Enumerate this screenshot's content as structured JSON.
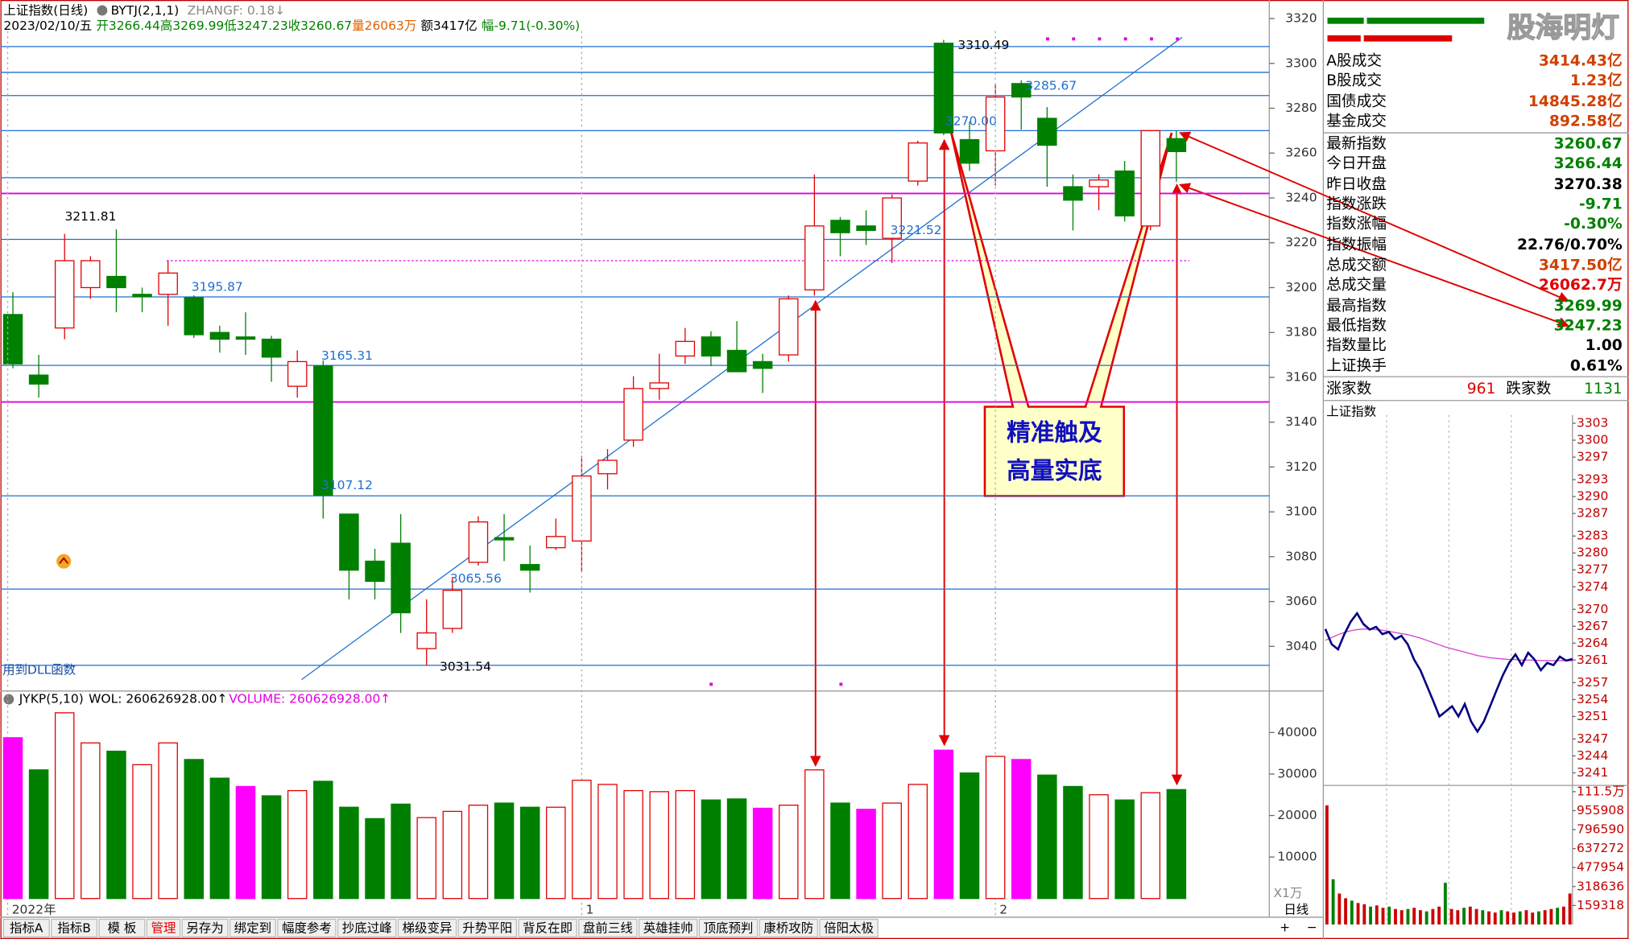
{
  "header": {
    "title": "上证指数(日线)",
    "indicator": "BYTJ(2,1,1)",
    "zhangf": "ZHANGF: 0.18↓",
    "date": "2023/02/10/五",
    "open": "开3266.44",
    "high": "高3269.99",
    "low": "低3247.23",
    "close": "收3260.67",
    "volume": "量26063万",
    "amount": "额3417亿",
    "change": "幅-9.71(-0.30%)"
  },
  "main_note": "用到DLL函数",
  "callout": [
    "精准触及",
    "高量实底"
  ],
  "chart_data": [
    {
      "type": "candlestick",
      "open": [
        3188,
        3161,
        3182,
        3200,
        3205,
        3197,
        3197,
        3195.5,
        3180,
        3178,
        3177,
        3156,
        3165,
        3099,
        3078,
        3086,
        3039,
        3048,
        3077.5,
        3088.5,
        3076.5,
        3084,
        3087,
        3117,
        3132,
        3155,
        3169.5,
        3178,
        3172,
        3167,
        3170,
        3199,
        3230,
        3227.5,
        3222,
        3247.5,
        3309,
        3266,
        3261,
        3291,
        3275.5,
        3245,
        3245,
        3252,
        3227.5,
        3266.44
      ],
      "high": [
        3198,
        3170,
        3224,
        3214,
        3226,
        3200,
        3212,
        3196.5,
        3183,
        3189,
        3178.5,
        3172,
        3167.5,
        3099,
        3083.5,
        3099,
        3061,
        3071,
        3098,
        3099,
        3085,
        3097,
        3125,
        3128,
        3160.5,
        3170.5,
        3182,
        3180.5,
        3185,
        3170.5,
        3196.5,
        3250.5,
        3231.5,
        3234.5,
        3241.5,
        3265.5,
        3310.49,
        3274,
        3290.5,
        3292.5,
        3280.5,
        3250.5,
        3250.5,
        3256.5,
        3270,
        3269.99
      ],
      "low": [
        3164,
        3151,
        3177,
        3195,
        3189,
        3189,
        3183,
        3177.5,
        3171,
        3170,
        3158,
        3151,
        3097,
        3061,
        3061,
        3046,
        3031.54,
        3046,
        3076,
        3078,
        3064,
        3083,
        3073,
        3110,
        3129,
        3150,
        3166,
        3165,
        3163,
        3153,
        3167,
        3196.5,
        3214,
        3219,
        3211,
        3245.5,
        3268,
        3252,
        3245.5,
        3270.5,
        3245,
        3225.5,
        3234.5,
        3229.5,
        3225.5,
        3247.23
      ],
      "close": [
        3166,
        3157,
        3212,
        3212,
        3200,
        3196,
        3206.5,
        3179,
        3177,
        3177,
        3169,
        3167,
        3107.5,
        3074,
        3069,
        3055,
        3046,
        3065,
        3095.5,
        3087.5,
        3074,
        3089,
        3116,
        3123,
        3155,
        3157.5,
        3176,
        3169.5,
        3162.5,
        3164,
        3195,
        3227.5,
        3224.5,
        3225.5,
        3240,
        3264.5,
        3269,
        3255.5,
        3285,
        3285,
        3263.5,
        3239,
        3248,
        3232,
        3270,
        3260.67
      ],
      "up_color": "#e00000",
      "down_color": "#008000",
      "ylim": [
        3025,
        3326
      ],
      "yticks": [
        3040,
        3060,
        3080,
        3100,
        3120,
        3140,
        3160,
        3180,
        3200,
        3220,
        3240,
        3260,
        3280,
        3300,
        3320
      ],
      "levels": [
        3307.5,
        3296,
        3285.67,
        3270,
        3249,
        3221.52,
        3195.87,
        3165.31,
        3107.12,
        3065.56,
        3031.54
      ],
      "level_color": "#1e6fd0",
      "magenta_levels": [
        3242,
        3149
      ],
      "magenta_color": "#e000e0",
      "dotted_levels": [
        3212
      ],
      "annotations": [
        "3211.81",
        "3195.87",
        "3165.31",
        "3107.12",
        "3065.56",
        "3031.54",
        "3221.52",
        "3270.00",
        "3285.67",
        "3310.49"
      ]
    },
    {
      "type": "bar",
      "title": "JYKP(5,10)",
      "legend": [
        "WOL: 260626928.00↑",
        "VOLUME: 260626928.00↑"
      ],
      "categories": [
        "2022年",
        null,
        null,
        null,
        null,
        null,
        null,
        null,
        null,
        null,
        null,
        null,
        null,
        null,
        null,
        null,
        null,
        null,
        null,
        null,
        null,
        null,
        "1",
        null,
        null,
        null,
        null,
        null,
        null,
        null,
        null,
        null,
        null,
        null,
        null,
        null,
        null,
        null,
        "2",
        null,
        null,
        null,
        null,
        null,
        null,
        null
      ],
      "values": [
        38750,
        31000,
        44750,
        37500,
        35500,
        32250,
        37500,
        33500,
        29000,
        27000,
        24750,
        26000,
        28250,
        22000,
        19250,
        22750,
        19500,
        21000,
        22500,
        23000,
        22000,
        22000,
        28500,
        27500,
        26000,
        25750,
        26000,
        23750,
        24000,
        21750,
        22500,
        31000,
        23000,
        21500,
        23000,
        27500,
        35750,
        30250,
        34250,
        33500,
        29750,
        27000,
        25000,
        23750,
        25500,
        26250
      ],
      "colors": [
        "#ff00ff",
        "#008000",
        "#e00000",
        "#e00000",
        "#008000",
        "#e00000",
        "#e00000",
        "#008000",
        "#008000",
        "#ff00ff",
        "#008000",
        "#e00000",
        "#008000",
        "#008000",
        "#008000",
        "#008000",
        "#e00000",
        "#e00000",
        "#e00000",
        "#008000",
        "#008000",
        "#e00000",
        "#e00000",
        "#e00000",
        "#e00000",
        "#e00000",
        "#e00000",
        "#008000",
        "#008000",
        "#ff00ff",
        "#e00000",
        "#e00000",
        "#008000",
        "#ff00ff",
        "#e00000",
        "#e00000",
        "#ff00ff",
        "#008000",
        "#e00000",
        "#ff00ff",
        "#008000",
        "#008000",
        "#e00000",
        "#008000",
        "#e00000",
        "#008000"
      ],
      "hollow_color": "#e00000",
      "ylim": [
        0,
        48000
      ],
      "yticks": [
        10000,
        20000,
        30000,
        40000
      ],
      "unit_label": "X1万",
      "period": "日线"
    },
    {
      "type": "line",
      "title": "上证指数",
      "series": [
        {
          "color": "#000080",
          "values": [
            3266.5,
            3263.8,
            3262.9,
            3265.6,
            3267.8,
            3269.3,
            3267.4,
            3266.4,
            3266.9,
            3265.6,
            3266,
            3264.7,
            3265.3,
            3263.8,
            3261.1,
            3259.2,
            3256.5,
            3253.8,
            3251,
            3251.9,
            3252.8,
            3251,
            3253.2,
            3250.1,
            3248.3,
            3250.1,
            3252.8,
            3255.6,
            3258.3,
            3260.5,
            3262,
            3260.1,
            3262.3,
            3261.1,
            3259.2,
            3260.5,
            3260.1,
            3261.6,
            3260.9,
            3261.2
          ]
        },
        {
          "color": "#d040d0",
          "values": [
            3264.5,
            3265,
            3265.5,
            3265.9,
            3266.2,
            3266.4,
            3266.5,
            3266.5,
            3266.4,
            3266.3,
            3266.1,
            3265.9,
            3265.7,
            3265.5,
            3265.2,
            3264.9,
            3264.5,
            3264.1,
            3263.7,
            3263.3,
            3263,
            3262.7,
            3262.4,
            3262.1,
            3261.8,
            3261.6,
            3261.4,
            3261.3,
            3261.2,
            3261.1,
            3261.1,
            3261,
            3261,
            3261,
            3260.9,
            3260.9,
            3260.9,
            3260.9,
            3260.9,
            3260.9
          ]
        }
      ],
      "ylim": [
        3239.5,
        3304.5
      ],
      "yticks": [
        3303,
        3300,
        3297,
        3293,
        3290,
        3287,
        3283,
        3280,
        3277,
        3274,
        3270,
        3267,
        3264,
        3261,
        3257,
        3254,
        3251,
        3247,
        3244,
        3241
      ]
    },
    {
      "type": "bar",
      "color": "#cc0000",
      "values": [
        1000000,
        380000,
        260000,
        220000,
        200000,
        180000,
        170000,
        150000,
        160000,
        140000,
        150000,
        130000,
        120000,
        130000,
        140000,
        120000,
        110000,
        130000,
        150000,
        350000,
        130000,
        120000,
        140000,
        150000,
        130000,
        120000,
        110000,
        100000,
        120000,
        110000,
        100000,
        110000,
        120000,
        100000,
        110000,
        120000,
        130000,
        140000,
        150000,
        260000
      ],
      "ylim": [
        0,
        1115000
      ],
      "yticks": [
        {
          "value": 1115000,
          "label": "111.5万"
        },
        955908,
        796590,
        637272,
        477954,
        318636,
        159318
      ]
    }
  ],
  "tabs": [
    "指标A",
    "指标B",
    "模 板",
    "管理",
    "另存为",
    "绑定到",
    "幅度参考",
    "抄底过峰",
    "梯级变异",
    "升势平阳",
    "背反在即",
    "盘前三线",
    "英雄挂帅",
    "顶底预判",
    "康桥攻防",
    "倍阳太极"
  ],
  "panel": {
    "watermark": "股海明灯",
    "rows": [
      [
        "A股成交",
        "3414.43亿"
      ],
      [
        "B股成交",
        "1.23亿"
      ],
      [
        "国债成交",
        "14845.28亿"
      ],
      [
        "基金成交",
        "892.58亿"
      ],
      [
        "最新指数",
        "3260.67"
      ],
      [
        "今日开盘",
        "3266.44"
      ],
      [
        "昨日收盘",
        "3270.38"
      ],
      [
        "指数涨跌",
        "-9.71"
      ],
      [
        "指数涨幅",
        "-0.30%"
      ],
      [
        "指数振幅",
        "22.76/0.70%"
      ],
      [
        "总成交额",
        "3417.50亿"
      ],
      [
        "总成交量",
        "26062.7万"
      ],
      [
        "最高指数",
        "3269.99"
      ],
      [
        "最低指数",
        "3247.23"
      ],
      [
        "指数量比",
        "1.00"
      ],
      [
        "上证换手",
        "0.61%"
      ]
    ],
    "advance_label": "涨家数",
    "advance": "961",
    "decline_label": "跌家数",
    "decline": "1131"
  }
}
